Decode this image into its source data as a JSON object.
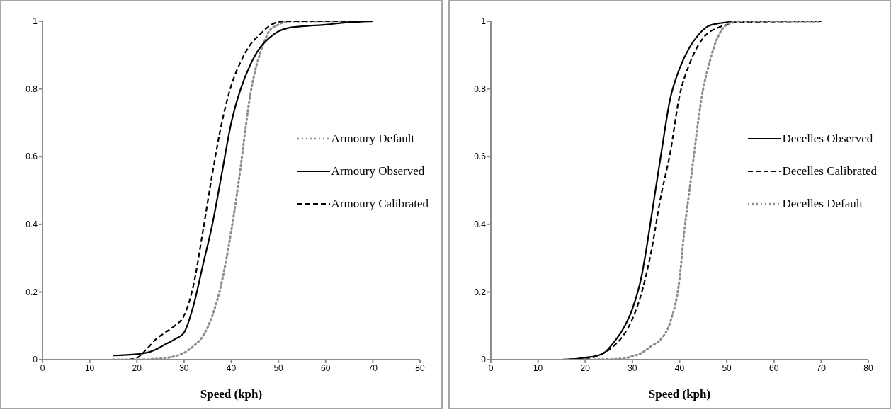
{
  "chart_data": [
    {
      "type": "line",
      "xlabel": "Speed (kph)",
      "xlim": [
        0,
        80
      ],
      "xticks": [
        0,
        10,
        20,
        30,
        40,
        50,
        60,
        70,
        80
      ],
      "ylim": [
        0,
        1
      ],
      "yticks": [
        0,
        0.2,
        0.4,
        0.6,
        0.8,
        1
      ],
      "grid": false,
      "legend": "right",
      "marker": "none",
      "series": [
        {
          "name": "Armoury Default",
          "color": "#8c8c8c",
          "line_style": "dotted",
          "x": [
            15,
            20,
            25,
            28,
            30,
            32,
            34,
            36,
            38,
            40,
            41,
            42,
            43,
            44,
            45,
            46,
            47,
            48,
            50,
            52,
            70
          ],
          "values": [
            0,
            0,
            0.003,
            0.01,
            0.02,
            0.04,
            0.07,
            0.13,
            0.23,
            0.38,
            0.47,
            0.57,
            0.68,
            0.78,
            0.85,
            0.9,
            0.94,
            0.97,
            0.99,
            1,
            1
          ]
        },
        {
          "name": "Armoury Observed",
          "color": "#000000",
          "line_style": "solid",
          "x": [
            15,
            20,
            22,
            24,
            26,
            28,
            30,
            32,
            34,
            36,
            38,
            40,
            42,
            44,
            46,
            48,
            50,
            52,
            55,
            60,
            65,
            70
          ],
          "values": [
            0.012,
            0.016,
            0.02,
            0.03,
            0.045,
            0.06,
            0.08,
            0.16,
            0.28,
            0.4,
            0.55,
            0.7,
            0.8,
            0.87,
            0.92,
            0.95,
            0.97,
            0.98,
            0.985,
            0.99,
            0.997,
            1
          ]
        },
        {
          "name": "Armoury Calibrated",
          "color": "#000000",
          "line_style": "dashed",
          "x": [
            15,
            18,
            20,
            22,
            24,
            26,
            28,
            30,
            32,
            34,
            36,
            38,
            40,
            42,
            44,
            46,
            48,
            50,
            52,
            70
          ],
          "values": [
            0,
            0,
            0.005,
            0.03,
            0.06,
            0.08,
            0.1,
            0.13,
            0.22,
            0.38,
            0.55,
            0.7,
            0.81,
            0.88,
            0.93,
            0.96,
            0.985,
            0.998,
            1,
            1
          ]
        }
      ]
    },
    {
      "type": "line",
      "xlabel": "Speed (kph)",
      "xlim": [
        0,
        80
      ],
      "xticks": [
        0,
        10,
        20,
        30,
        40,
        50,
        60,
        70,
        80
      ],
      "ylim": [
        0,
        1
      ],
      "yticks": [
        0,
        0.2,
        0.4,
        0.6,
        0.8,
        1
      ],
      "grid": false,
      "legend": "right",
      "marker": "none",
      "series": [
        {
          "name": "Decelles Observed",
          "color": "#000000",
          "line_style": "solid",
          "x": [
            15,
            18,
            20,
            22,
            24,
            26,
            28,
            30,
            32,
            33,
            34,
            36,
            38,
            40,
            42,
            44,
            46,
            48,
            50,
            52,
            70
          ],
          "values": [
            0,
            0.002,
            0.006,
            0.01,
            0.02,
            0.05,
            0.09,
            0.15,
            0.25,
            0.33,
            0.42,
            0.6,
            0.77,
            0.86,
            0.92,
            0.96,
            0.985,
            0.993,
            0.997,
            1,
            1
          ]
        },
        {
          "name": "Decelles Calibrated",
          "color": "#000000",
          "line_style": "dashed",
          "x": [
            15,
            20,
            22,
            24,
            26,
            28,
            30,
            32,
            34,
            36,
            38,
            40,
            42,
            44,
            46,
            48,
            50,
            52,
            70
          ],
          "values": [
            0,
            0.004,
            0.008,
            0.02,
            0.04,
            0.07,
            0.12,
            0.2,
            0.32,
            0.48,
            0.61,
            0.78,
            0.87,
            0.93,
            0.965,
            0.98,
            0.99,
            0.997,
            1
          ]
        },
        {
          "name": "Decelles Default",
          "color": "#8c8c8c",
          "line_style": "dotted",
          "x": [
            20,
            25,
            28,
            30,
            32,
            34,
            36,
            38,
            40,
            41,
            42,
            43,
            44,
            45,
            46,
            48,
            50,
            52,
            70
          ],
          "values": [
            0,
            0.001,
            0.003,
            0.01,
            0.02,
            0.04,
            0.06,
            0.11,
            0.24,
            0.38,
            0.49,
            0.6,
            0.71,
            0.8,
            0.86,
            0.95,
            0.99,
            1,
            1
          ]
        }
      ]
    }
  ]
}
